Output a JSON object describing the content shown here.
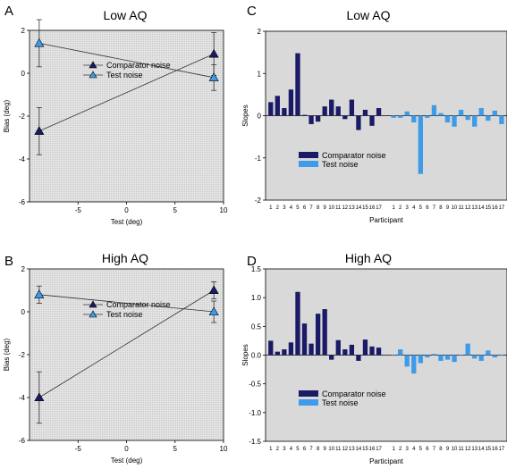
{
  "colors": {
    "comparator": "#1a1a66",
    "test": "#3d9be9",
    "plot_bg": "#d9d9d9",
    "line": "#333333"
  },
  "chart_data": [
    {
      "panel": "A",
      "type": "line",
      "title": "Low AQ",
      "xlabel": "Test (deg)",
      "ylabel": "Bias (deg)",
      "xlim": [
        -10,
        10
      ],
      "ylim": [
        -6,
        2
      ],
      "xticks": [
        -5,
        0,
        5,
        10
      ],
      "yticks": [
        -6,
        -4,
        -2,
        0,
        2
      ],
      "legend": "upper-center",
      "series": [
        {
          "name": "Comparator noise",
          "x": [
            -9,
            9
          ],
          "y": [
            -2.7,
            0.9
          ],
          "err": [
            1.1,
            1.0
          ],
          "color": "#1a1a66"
        },
        {
          "name": "Test noise",
          "x": [
            -9,
            9
          ],
          "y": [
            1.4,
            -0.2
          ],
          "err": [
            1.1,
            0.6
          ],
          "color": "#3d9be9"
        }
      ]
    },
    {
      "panel": "C",
      "type": "bar",
      "title": "Low AQ",
      "xlabel": "Participant",
      "ylabel": "Slopes",
      "ylim": [
        -2,
        2
      ],
      "yticks": [
        -2,
        -1,
        0,
        1,
        2
      ],
      "legend": "lower-center",
      "categories": [
        "1",
        "2",
        "3",
        "4",
        "5",
        "6",
        "7",
        "8",
        "9",
        "10",
        "11",
        "12",
        "13",
        "14",
        "15",
        "16",
        "17"
      ],
      "series": [
        {
          "name": "Comparator noise",
          "color": "#1a1a66",
          "values": [
            0.32,
            0.47,
            0.18,
            0.62,
            1.48,
            0.02,
            -0.2,
            -0.14,
            0.22,
            0.38,
            0.22,
            -0.08,
            0.38,
            -0.34,
            0.14,
            -0.24,
            0.18
          ]
        },
        {
          "name": "Test noise",
          "color": "#3d9be9",
          "values": [
            -0.05,
            -0.05,
            0.1,
            -0.16,
            -1.38,
            -0.05,
            0.25,
            0.06,
            -0.16,
            -0.26,
            0.14,
            -0.1,
            -0.26,
            0.18,
            -0.12,
            0.12,
            -0.2
          ]
        }
      ]
    },
    {
      "panel": "B",
      "type": "line",
      "title": "High AQ",
      "xlabel": "Test (deg)",
      "ylabel": "Bias (deg)",
      "xlim": [
        -10,
        10
      ],
      "ylim": [
        -6,
        2
      ],
      "xticks": [
        -5,
        0,
        5,
        10
      ],
      "yticks": [
        -6,
        -4,
        -2,
        0,
        2
      ],
      "legend": "upper-center",
      "series": [
        {
          "name": "Comparator noise",
          "x": [
            -9,
            9
          ],
          "y": [
            -4.0,
            1.0
          ],
          "err": [
            1.2,
            0.4
          ],
          "color": "#1a1a66"
        },
        {
          "name": "Test noise",
          "x": [
            -9,
            9
          ],
          "y": [
            0.8,
            0.0
          ],
          "err": [
            0.4,
            0.5
          ],
          "color": "#3d9be9"
        }
      ]
    },
    {
      "panel": "D",
      "type": "bar",
      "title": "High AQ",
      "xlabel": "Participant",
      "ylabel": "Slopes",
      "ylim": [
        -1.5,
        1.5
      ],
      "yticks": [
        -1.5,
        -1.0,
        -0.5,
        0.0,
        0.5,
        1.0,
        1.5
      ],
      "legend": "lower-center",
      "categories": [
        "1",
        "2",
        "3",
        "4",
        "5",
        "6",
        "7",
        "8",
        "9",
        "10",
        "11",
        "12",
        "13",
        "14",
        "15",
        "16",
        "17"
      ],
      "series": [
        {
          "name": "Comparator noise",
          "color": "#1a1a66",
          "values": [
            0.25,
            0.06,
            0.1,
            0.22,
            1.1,
            0.55,
            0.2,
            0.72,
            0.8,
            -0.08,
            0.26,
            0.1,
            0.18,
            -0.1,
            0.27,
            0.15,
            0.13
          ]
        },
        {
          "name": "Test noise",
          "color": "#3d9be9",
          "values": [
            0.0,
            0.1,
            -0.2,
            -0.32,
            -0.14,
            -0.04,
            0.02,
            -0.1,
            -0.08,
            -0.12,
            0.0,
            0.2,
            -0.06,
            -0.1,
            0.08,
            -0.04,
            0.0
          ]
        }
      ]
    }
  ]
}
